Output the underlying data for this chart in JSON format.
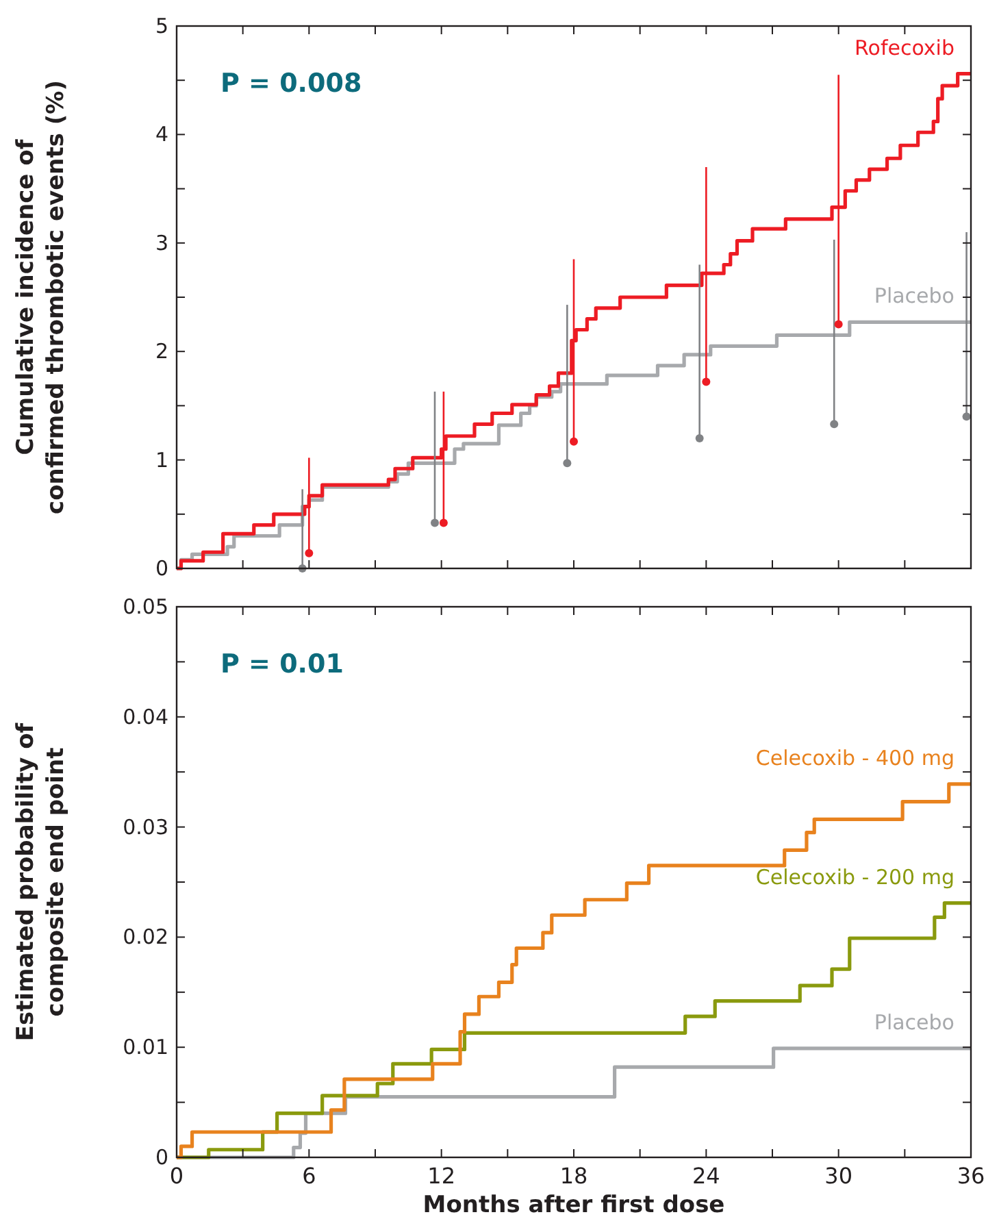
{
  "chart_data": [
    {
      "type": "step",
      "ylabel": "Cumulative incidence of\nconfirmed thrombotic events (%)",
      "xlim": [
        0,
        36
      ],
      "ylim": [
        0,
        5
      ],
      "xticks": [
        0,
        {
          "value": 3,
          "label": null
        },
        6,
        {
          "value": 9,
          "label": null
        },
        12,
        {
          "value": 15,
          "label": null
        },
        18,
        {
          "value": 21,
          "label": null
        },
        24,
        {
          "value": 27,
          "label": null
        },
        30,
        {
          "value": 33,
          "label": null
        },
        36
      ],
      "yticks": [
        0,
        {
          "value": 0.5,
          "label": null
        },
        1,
        {
          "value": 1.5,
          "label": null
        },
        2,
        {
          "value": 2.5,
          "label": null
        },
        3,
        {
          "value": 3.5,
          "label": null
        },
        4,
        {
          "value": 4.5,
          "label": null
        },
        5
      ],
      "tick_labels": "y",
      "annotations": [
        "P = 0.008"
      ],
      "grid": false,
      "series": [
        {
          "name": "Placebo",
          "color": "#a7a9ac",
          "x": [
            0,
            0.2,
            0.7,
            2.3,
            2.6,
            4.66,
            5.7,
            6.0,
            6.6,
            9.6,
            10.0,
            10.5,
            12.6,
            13.0,
            14.6,
            15.6,
            16.0,
            16.3,
            17.0,
            17.4,
            19.5,
            21.8,
            23.0,
            24.2,
            27.2,
            30.5,
            36
          ],
          "values": [
            0,
            0.08,
            0.13,
            0.2,
            0.3,
            0.4,
            0.57,
            0.63,
            0.75,
            0.8,
            0.87,
            0.97,
            1.1,
            1.15,
            1.32,
            1.43,
            1.5,
            1.58,
            1.63,
            1.7,
            1.78,
            1.87,
            1.97,
            2.05,
            2.15,
            2.27,
            2.27
          ]
        },
        {
          "name": "Rofecoxib",
          "color": "#ed1c24",
          "x": [
            0,
            0.2,
            1.2,
            2.1,
            3.5,
            4.4,
            5.8,
            6.0,
            6.6,
            9.6,
            9.9,
            10.7,
            12.0,
            12.2,
            13.5,
            14.3,
            15.2,
            16.3,
            16.9,
            17.3,
            17.9,
            18.1,
            18.6,
            19.0,
            20.1,
            22.2,
            23.8,
            24.8,
            25.1,
            25.4,
            26.1,
            27.6,
            29.7,
            30.3,
            30.8,
            31.4,
            32.2,
            32.8,
            33.6,
            34.3,
            34.5,
            34.7,
            35.4,
            36
          ],
          "values": [
            0,
            0.07,
            0.15,
            0.32,
            0.4,
            0.5,
            0.57,
            0.67,
            0.77,
            0.82,
            0.92,
            1.02,
            1.1,
            1.22,
            1.33,
            1.43,
            1.51,
            1.6,
            1.68,
            1.8,
            2.1,
            2.2,
            2.3,
            2.4,
            2.5,
            2.61,
            2.72,
            2.8,
            2.9,
            3.02,
            3.13,
            3.22,
            3.33,
            3.48,
            3.58,
            3.68,
            3.78,
            3.9,
            4.02,
            4.12,
            4.33,
            4.45,
            4.56,
            4.56
          ]
        },
        {
          "type": "scatter",
          "marker": "circle",
          "color": "#808285",
          "x": [
            5.7,
            11.7,
            17.7,
            23.7,
            29.8,
            35.8
          ],
          "values": [
            0,
            0.42,
            0.97,
            1.2,
            1.33,
            1.4
          ],
          "errors": [
            [
              0,
              0.73
            ],
            [
              0.42,
              1.63
            ],
            [
              0.97,
              2.43
            ],
            [
              1.2,
              2.8
            ],
            [
              1.33,
              3.03
            ],
            [
              1.4,
              3.1
            ]
          ]
        },
        {
          "type": "scatter",
          "marker": "circle",
          "color": "#ed1c24",
          "x": [
            6.0,
            12.1,
            18.0,
            24.0,
            30.0
          ],
          "values": [
            0.14,
            0.42,
            1.17,
            1.72,
            2.25
          ],
          "errors": [
            [
              0.14,
              1.02
            ],
            [
              0.42,
              1.63
            ],
            [
              1.17,
              2.85
            ],
            [
              1.72,
              3.7
            ],
            [
              2.25,
              4.55
            ]
          ]
        }
      ]
    },
    {
      "type": "step",
      "ylabel": "Estimated probability of\ncomposite end point",
      "xlabel": "Months after first dose",
      "xlim": [
        0,
        36
      ],
      "ylim": [
        0,
        0.05
      ],
      "xticks": [
        0,
        {
          "value": 3,
          "label": null
        },
        6,
        {
          "value": 9,
          "label": null
        },
        12,
        {
          "value": 15,
          "label": null
        },
        18,
        {
          "value": 21,
          "label": null
        },
        24,
        {
          "value": 27,
          "label": null
        },
        30,
        {
          "value": 33,
          "label": null
        },
        36
      ],
      "yticks": [
        0,
        {
          "value": 0.005,
          "label": null
        },
        0.01,
        {
          "value": 0.015,
          "label": null
        },
        0.02,
        {
          "value": 0.025,
          "label": null
        },
        0.03,
        {
          "value": 0.035,
          "label": null
        },
        0.04,
        {
          "value": 0.045,
          "label": null
        },
        0.05
      ],
      "annotations": [
        "P = 0.01"
      ],
      "grid": false,
      "series": [
        {
          "name": "Placebo",
          "color": "#a7a9ac",
          "x": [
            0,
            5.3,
            5.6,
            5.85,
            7.65,
            19.85,
            27.05,
            36
          ],
          "values": [
            0,
            0.0009,
            0.0022,
            0.004,
            0.0055,
            0.0082,
            0.0099,
            0.0099
          ]
        },
        {
          "name": "Celecoxib - 200 mg",
          "color": "#8a9a0e",
          "x": [
            0,
            1.45,
            3.9,
            4.55,
            6.6,
            9.1,
            9.8,
            11.55,
            13.05,
            23.05,
            24.4,
            28.25,
            29.7,
            30.5,
            34.35,
            34.8,
            36
          ],
          "values": [
            0,
            0.0007,
            0.0023,
            0.004,
            0.0056,
            0.0067,
            0.0085,
            0.0098,
            0.0113,
            0.0128,
            0.0142,
            0.0156,
            0.0171,
            0.0199,
            0.0218,
            0.0231,
            0.0231
          ]
        },
        {
          "name": "Celecoxib - 400 mg",
          "color": "#e8821e",
          "x": [
            0,
            0.2,
            0.7,
            7.0,
            7.6,
            11.6,
            12.85,
            13.05,
            13.7,
            14.6,
            15.2,
            15.4,
            16.6,
            17.0,
            18.5,
            20.4,
            21.4,
            27.55,
            28.55,
            28.9,
            32.9,
            35.0,
            36
          ],
          "values": [
            0,
            0.001,
            0.0023,
            0.0043,
            0.0071,
            0.0085,
            0.0114,
            0.013,
            0.0146,
            0.0159,
            0.0175,
            0.019,
            0.0204,
            0.022,
            0.0234,
            0.0249,
            0.0265,
            0.0279,
            0.0295,
            0.0307,
            0.0323,
            0.0339,
            0.0339
          ]
        }
      ]
    }
  ]
}
